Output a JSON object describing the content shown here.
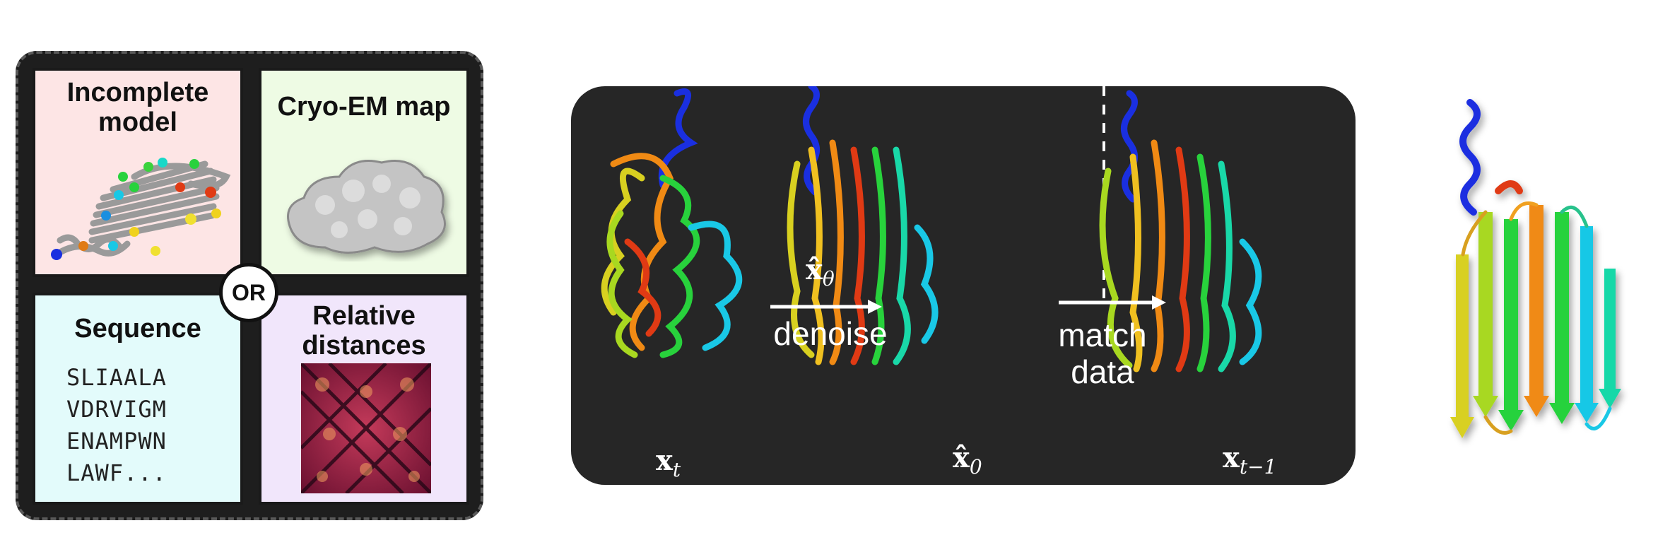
{
  "input_panel": {
    "connector": "OR",
    "cells": [
      {
        "id": "incomplete-model",
        "title_line1": "Incomplete",
        "title_line2": "model"
      },
      {
        "id": "cryo-em-map",
        "title": "Cryo-EM map"
      },
      {
        "id": "sequence",
        "title": "Sequence",
        "lines": [
          "SLIAALA",
          "VDRVIGM",
          "ENAMPWN",
          "LAWF..."
        ]
      },
      {
        "id": "relative-distances",
        "title_line1": "Relative",
        "title_line2": "distances"
      }
    ]
  },
  "diffusion_panel": {
    "states": {
      "xt": {
        "base": "x",
        "sub": "t"
      },
      "x0_hat": {
        "base": "x̂",
        "sub": "0"
      },
      "xt_minus_1": {
        "base": "x",
        "sub": "t−1"
      }
    },
    "arrow_denoise": {
      "math_base": "x̂",
      "math_sub": "θ",
      "label": "denoise"
    },
    "arrow_match": {
      "label_line1": "match",
      "label_line2": "data"
    }
  },
  "colors": {
    "panel_dark": "#262626",
    "model_bg": "#fde5e5",
    "cryo_bg": "#eefbe4",
    "sequence_bg": "#e3fbfb",
    "distances_bg": "#f1e6fb"
  }
}
